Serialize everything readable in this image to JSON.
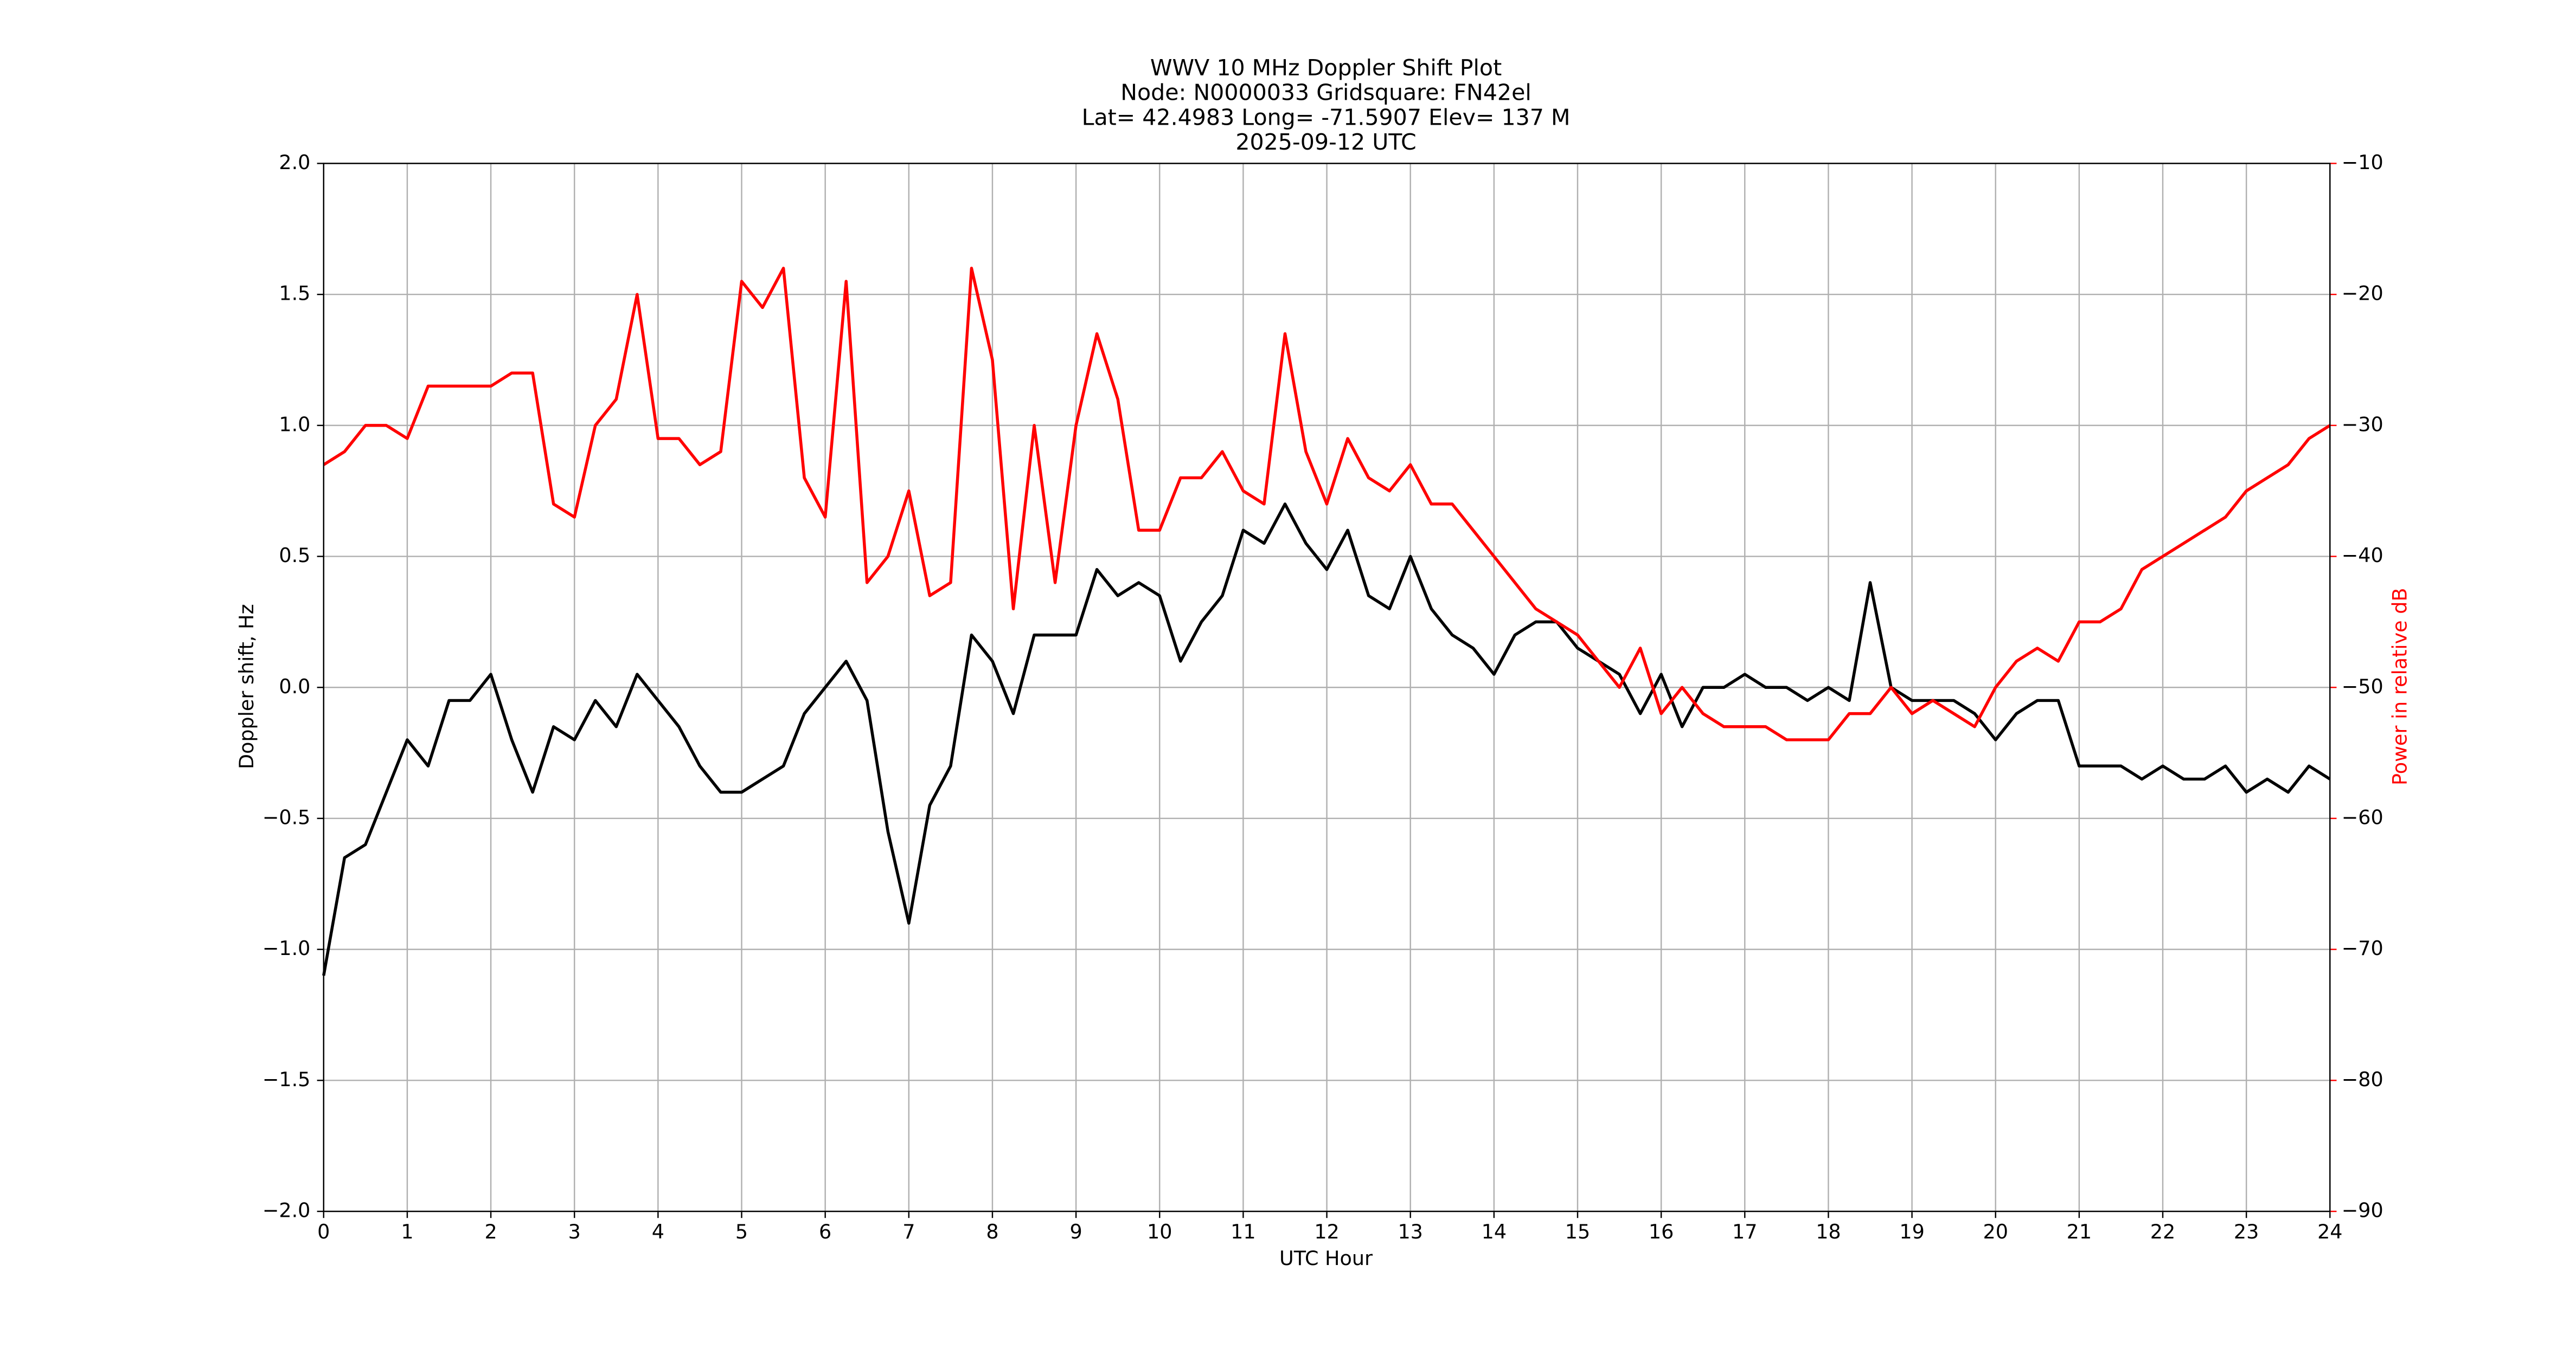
{
  "chart_data": {
    "type": "line",
    "title": "WWV 10 MHz Doppler Shift Plot",
    "subtitle": [
      "Node:  N0000033     Gridsquare:  FN42el",
      "Lat= 42.4983    Long= -71.5907    Elev= 137 M",
      "2025-09-12  UTC"
    ],
    "x_label": "UTC Hour",
    "y_label": "Doppler shift, Hz",
    "y2_label": "Power in relative dB",
    "x": [
      0,
      0.25,
      0.5,
      0.75,
      1,
      1.25,
      1.5,
      1.75,
      2,
      2.25,
      2.5,
      2.75,
      3,
      3.25,
      3.5,
      3.75,
      4,
      4.25,
      4.5,
      4.75,
      5,
      5.25,
      5.5,
      5.75,
      6,
      6.25,
      6.5,
      6.75,
      7,
      7.25,
      7.5,
      7.75,
      8,
      8.25,
      8.5,
      8.75,
      9,
      9.25,
      9.5,
      9.75,
      10,
      10.25,
      10.5,
      10.75,
      11,
      11.25,
      11.5,
      11.75,
      12,
      12.25,
      12.5,
      12.75,
      13,
      13.25,
      13.5,
      13.75,
      14,
      14.25,
      14.5,
      14.75,
      15,
      15.25,
      15.5,
      15.75,
      16,
      16.25,
      16.5,
      16.75,
      17,
      17.25,
      17.5,
      17.75,
      18,
      18.25,
      18.5,
      18.75,
      19,
      19.25,
      19.5,
      19.75,
      20,
      20.25,
      20.5,
      20.75,
      21,
      21.25,
      21.5,
      21.75,
      22,
      22.25,
      22.5,
      22.75,
      23,
      23.25,
      23.5,
      23.75,
      24
    ],
    "series": [
      {
        "color": "#000000",
        "values": [
          -1.1,
          -0.65,
          -0.6,
          -0.4,
          -0.2,
          -0.3,
          -0.05,
          -0.05,
          0.05,
          -0.2,
          -0.4,
          -0.15,
          -0.2,
          -0.05,
          -0.15,
          0.05,
          -0.05,
          -0.15,
          -0.3,
          -0.4,
          -0.4,
          -0.35,
          -0.3,
          -0.1,
          0.0,
          0.1,
          -0.05,
          -0.55,
          -0.9,
          -0.45,
          -0.3,
          0.2,
          0.1,
          -0.1,
          0.2,
          0.2,
          0.2,
          0.45,
          0.35,
          0.4,
          0.35,
          0.1,
          0.25,
          0.35,
          0.6,
          0.55,
          0.7,
          0.55,
          0.45,
          0.6,
          0.35,
          0.3,
          0.5,
          0.3,
          0.2,
          0.15,
          0.05,
          0.2,
          0.25,
          0.25,
          0.15,
          0.1,
          0.05,
          -0.1,
          0.05,
          -0.15,
          0,
          0,
          0.05,
          0,
          0,
          -0.05,
          0,
          -0.05,
          0.4,
          0,
          -0.05,
          -0.05,
          -0.05,
          -0.1,
          -0.2,
          -0.1,
          -0.05,
          -0.05,
          -0.3,
          -0.3,
          -0.3,
          -0.35,
          -0.3,
          -0.35,
          -0.35,
          -0.3,
          -0.4,
          -0.35,
          -0.4,
          -0.3,
          -0.35
        ]
      },
      {
        "color": "#ff0000",
        "axis": "y2",
        "values": [
          -33,
          -32,
          -30,
          -30,
          -31,
          -27,
          -27,
          -27,
          -27,
          -26,
          -26,
          -36,
          -37,
          -30,
          -28,
          -20,
          -31,
          -31,
          -33,
          -32,
          -19,
          -21,
          -18,
          -34,
          -37,
          -19,
          -42,
          -40,
          -35,
          -43,
          -42,
          -18,
          -25,
          -44,
          -30,
          -42,
          -30,
          -23,
          -28,
          -38,
          -38,
          -34,
          -34,
          -32,
          -35,
          -36,
          -23,
          -32,
          -36,
          -31,
          -34,
          -35,
          -33,
          -36,
          -36,
          -38,
          -40,
          -42,
          -44,
          -45,
          -46,
          -48,
          -50,
          -47,
          -52,
          -50,
          -52,
          -53,
          -53,
          -53,
          -54,
          -54,
          -54,
          -52,
          -52,
          -50,
          -52,
          -51,
          -52,
          -53,
          -50,
          -48,
          -47,
          -48,
          -45,
          -45,
          -44,
          -41,
          -40,
          -39,
          -38,
          -37,
          -35,
          -34,
          -33,
          -31,
          -30
        ]
      }
    ],
    "xlim": [
      0,
      24
    ],
    "xticks": [
      0,
      1,
      2,
      3,
      4,
      5,
      6,
      7,
      8,
      9,
      10,
      11,
      12,
      13,
      14,
      15,
      16,
      17,
      18,
      19,
      20,
      21,
      22,
      23,
      24
    ],
    "ylim": [
      -2.0,
      2.0
    ],
    "yticks": [
      {
        "value": -2.0,
        "label": "−2.0"
      },
      {
        "value": -1.5,
        "label": "−1.5"
      },
      {
        "value": -1.0,
        "label": "−1.0"
      },
      {
        "value": -0.5,
        "label": "−0.5"
      },
      {
        "value": 0.0,
        "label": "0.0"
      },
      {
        "value": 0.5,
        "label": "0.5"
      },
      {
        "value": 1.0,
        "label": "1.0"
      },
      {
        "value": 1.5,
        "label": "1.5"
      },
      {
        "value": 2.0,
        "label": "2.0"
      }
    ],
    "y2lim": [
      -90,
      -10
    ],
    "y2ticks": [
      {
        "value": -90,
        "label": "−90"
      },
      {
        "value": -80,
        "label": "−80"
      },
      {
        "value": -70,
        "label": "−70"
      },
      {
        "value": -60,
        "label": "−60"
      },
      {
        "value": -50,
        "label": "−50"
      },
      {
        "value": -40,
        "label": "−40"
      },
      {
        "value": -30,
        "label": "−30"
      },
      {
        "value": -20,
        "label": "−20"
      },
      {
        "value": -10,
        "label": "−10"
      }
    ],
    "y2color": "#ff0000",
    "grid": true
  }
}
